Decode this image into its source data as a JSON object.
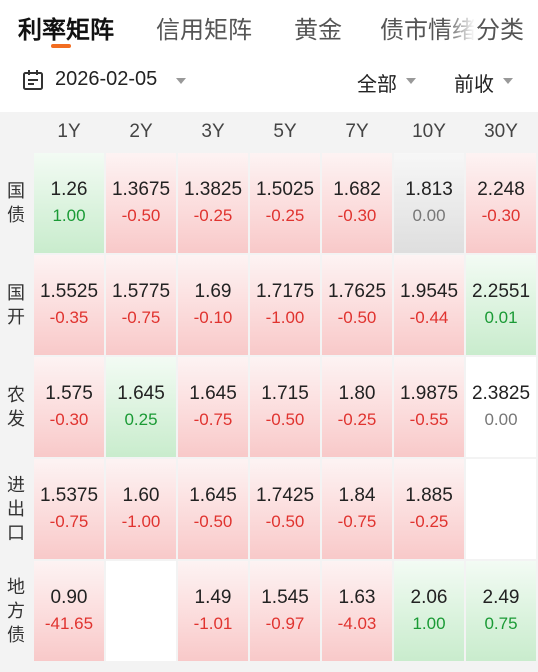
{
  "tabs": [
    "利率矩阵",
    "信用矩阵",
    "黄金",
    "债市情绪",
    "分类"
  ],
  "active_tab": 0,
  "filter": {
    "date": "2026-02-05",
    "scope": "全部",
    "basis": "前收"
  },
  "colors": {
    "accent": "#f26d21",
    "up": "#e0332f",
    "down": "#1a9a35",
    "flat": "#777777"
  },
  "columns": [
    "1Y",
    "2Y",
    "3Y",
    "5Y",
    "7Y",
    "10Y",
    "30Y"
  ],
  "rows": [
    {
      "name": [
        "国",
        "债"
      ],
      "cells": [
        {
          "v": "1.26",
          "c": "1.00",
          "t": "down"
        },
        {
          "v": "1.3675",
          "c": "-0.50",
          "t": "up"
        },
        {
          "v": "1.3825",
          "c": "-0.25",
          "t": "up"
        },
        {
          "v": "1.5025",
          "c": "-0.25",
          "t": "up"
        },
        {
          "v": "1.682",
          "c": "-0.30",
          "t": "up"
        },
        {
          "v": "1.813",
          "c": "0.00",
          "t": "flat"
        },
        {
          "v": "2.248",
          "c": "-0.30",
          "t": "up"
        }
      ]
    },
    {
      "name": [
        "国",
        "开"
      ],
      "cells": [
        {
          "v": "1.5525",
          "c": "-0.35",
          "t": "up"
        },
        {
          "v": "1.5775",
          "c": "-0.75",
          "t": "up"
        },
        {
          "v": "1.69",
          "c": "-0.10",
          "t": "up"
        },
        {
          "v": "1.7175",
          "c": "-1.00",
          "t": "up"
        },
        {
          "v": "1.7625",
          "c": "-0.50",
          "t": "up"
        },
        {
          "v": "1.9545",
          "c": "-0.44",
          "t": "up"
        },
        {
          "v": "2.2551",
          "c": "0.01",
          "t": "down"
        }
      ]
    },
    {
      "name": [
        "农",
        "发"
      ],
      "cells": [
        {
          "v": "1.575",
          "c": "-0.30",
          "t": "up"
        },
        {
          "v": "1.645",
          "c": "0.25",
          "t": "down"
        },
        {
          "v": "1.645",
          "c": "-0.75",
          "t": "up"
        },
        {
          "v": "1.715",
          "c": "-0.50",
          "t": "up"
        },
        {
          "v": "1.80",
          "c": "-0.25",
          "t": "up"
        },
        {
          "v": "1.9875",
          "c": "-0.55",
          "t": "up"
        },
        {
          "v": "2.3825",
          "c": "0.00",
          "t": "blank"
        }
      ]
    },
    {
      "name": [
        "进",
        "出",
        "口"
      ],
      "cells": [
        {
          "v": "1.5375",
          "c": "-0.75",
          "t": "up"
        },
        {
          "v": "1.60",
          "c": "-1.00",
          "t": "up"
        },
        {
          "v": "1.645",
          "c": "-0.50",
          "t": "up"
        },
        {
          "v": "1.7425",
          "c": "-0.50",
          "t": "up"
        },
        {
          "v": "1.84",
          "c": "-0.75",
          "t": "up"
        },
        {
          "v": "1.885",
          "c": "-0.25",
          "t": "up"
        },
        {
          "v": "",
          "c": "",
          "t": "blank"
        }
      ]
    },
    {
      "name": [
        "地",
        "方",
        "债"
      ],
      "cells": [
        {
          "v": "0.90",
          "c": "-41.65",
          "t": "up"
        },
        {
          "v": "",
          "c": "",
          "t": "blank"
        },
        {
          "v": "1.49",
          "c": "-1.01",
          "t": "up"
        },
        {
          "v": "1.545",
          "c": "-0.97",
          "t": "up"
        },
        {
          "v": "1.63",
          "c": "-4.03",
          "t": "up"
        },
        {
          "v": "2.06",
          "c": "1.00",
          "t": "down"
        },
        {
          "v": "2.49",
          "c": "0.75",
          "t": "down"
        }
      ]
    }
  ]
}
